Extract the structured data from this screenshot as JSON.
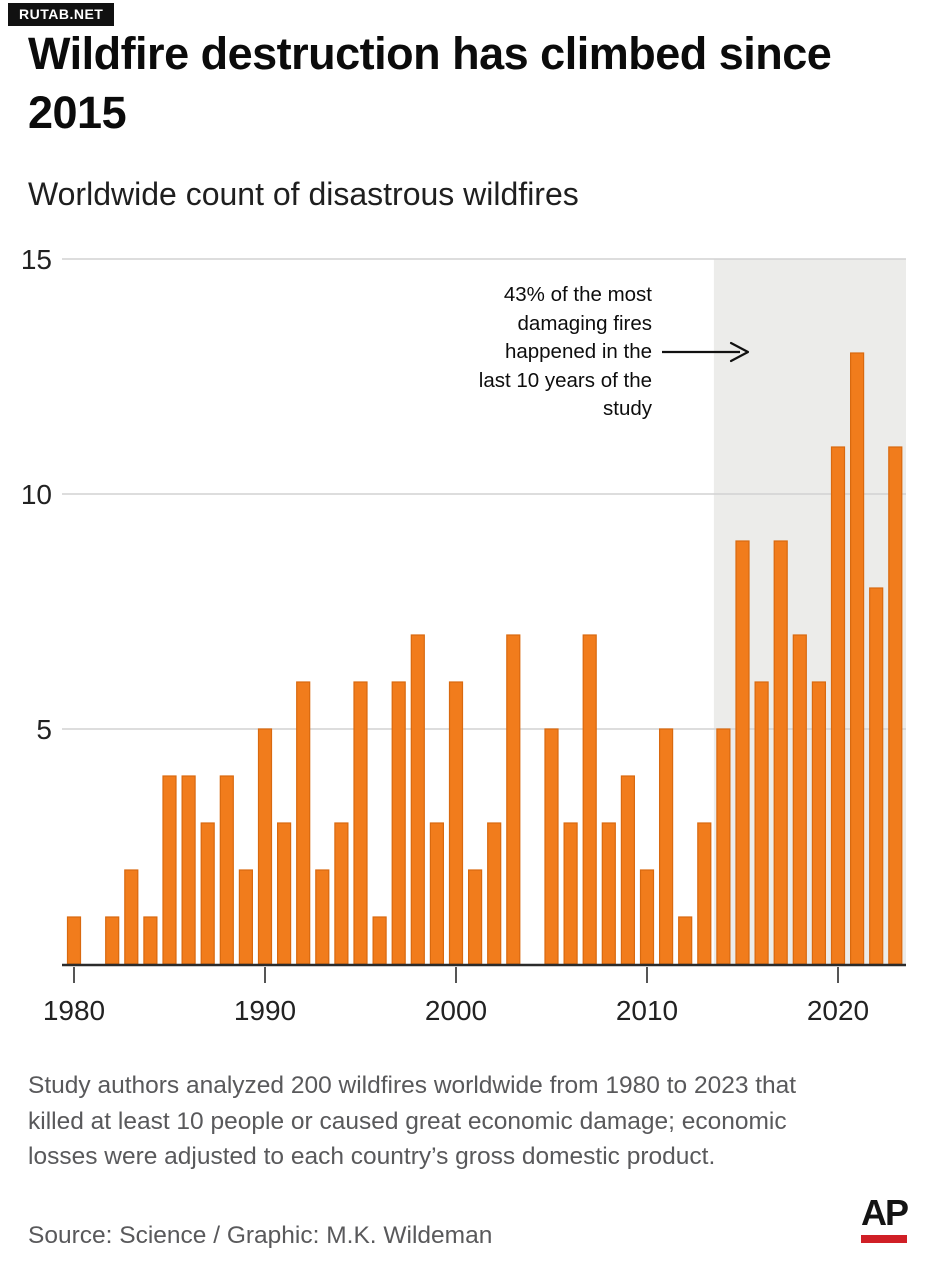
{
  "watermark": {
    "text": "RUTAB.NET"
  },
  "header": {
    "title": "Wildfire destruction has climbed since 2015",
    "subtitle": "Worldwide count of disastrous wildfires"
  },
  "annotation": {
    "lines": [
      "43% of the most",
      "damaging fires",
      "happened in the",
      "last 10 years of the",
      "study"
    ]
  },
  "chart_data": {
    "type": "bar",
    "title": "Wildfire destruction has climbed since 2015",
    "subtitle": "Worldwide count of disastrous wildfires",
    "xlabel": "",
    "ylabel": "",
    "ylim": [
      0,
      15
    ],
    "yticks": [
      5,
      10,
      15
    ],
    "ytick_labels": [
      "5",
      "10",
      "15"
    ],
    "xticks": [
      1980,
      1990,
      2000,
      2010,
      2020
    ],
    "xtick_labels": [
      "1980",
      "1990",
      "2000",
      "2010",
      "2020"
    ],
    "grid": true,
    "legend_position": "none",
    "years": [
      1980,
      1981,
      1982,
      1983,
      1984,
      1985,
      1986,
      1987,
      1988,
      1989,
      1990,
      1991,
      1992,
      1993,
      1994,
      1995,
      1996,
      1997,
      1998,
      1999,
      2000,
      2001,
      2002,
      2003,
      2004,
      2005,
      2006,
      2007,
      2008,
      2009,
      2010,
      2011,
      2012,
      2013,
      2014,
      2015,
      2016,
      2017,
      2018,
      2019,
      2020,
      2021,
      2022,
      2023
    ],
    "values": [
      1,
      0,
      1,
      2,
      1,
      4,
      4,
      3,
      4,
      2,
      5,
      3,
      6,
      2,
      3,
      6,
      1,
      6,
      7,
      3,
      6,
      2,
      3,
      7,
      0,
      5,
      3,
      7,
      3,
      4,
      2,
      5,
      1,
      3,
      5,
      9,
      6,
      9,
      7,
      6,
      11,
      13,
      8,
      11
    ],
    "bar_color": "#F17C1C",
    "bar_border_color": "#D9690F",
    "gridline_color": "#d2d2d2",
    "axis_line_color": "#2b2b2b",
    "tick_color": "#555555",
    "axis_label_color": "#222222",
    "highlight_region": {
      "from_year": 2014,
      "to_year": 2023,
      "color": "#ECECEA",
      "label": "43% of the most damaging fires happened in the last 10 years of the study"
    }
  },
  "footer": {
    "note": "Study authors analyzed 200 wildfires worldwide from 1980 to 2023 that killed at least 10 people or caused great economic damage; economic losses were adjusted to each country’s gross domestic product.",
    "source": "Source: Science / Graphic: M.K. Wildeman",
    "logo_text": "AP"
  }
}
